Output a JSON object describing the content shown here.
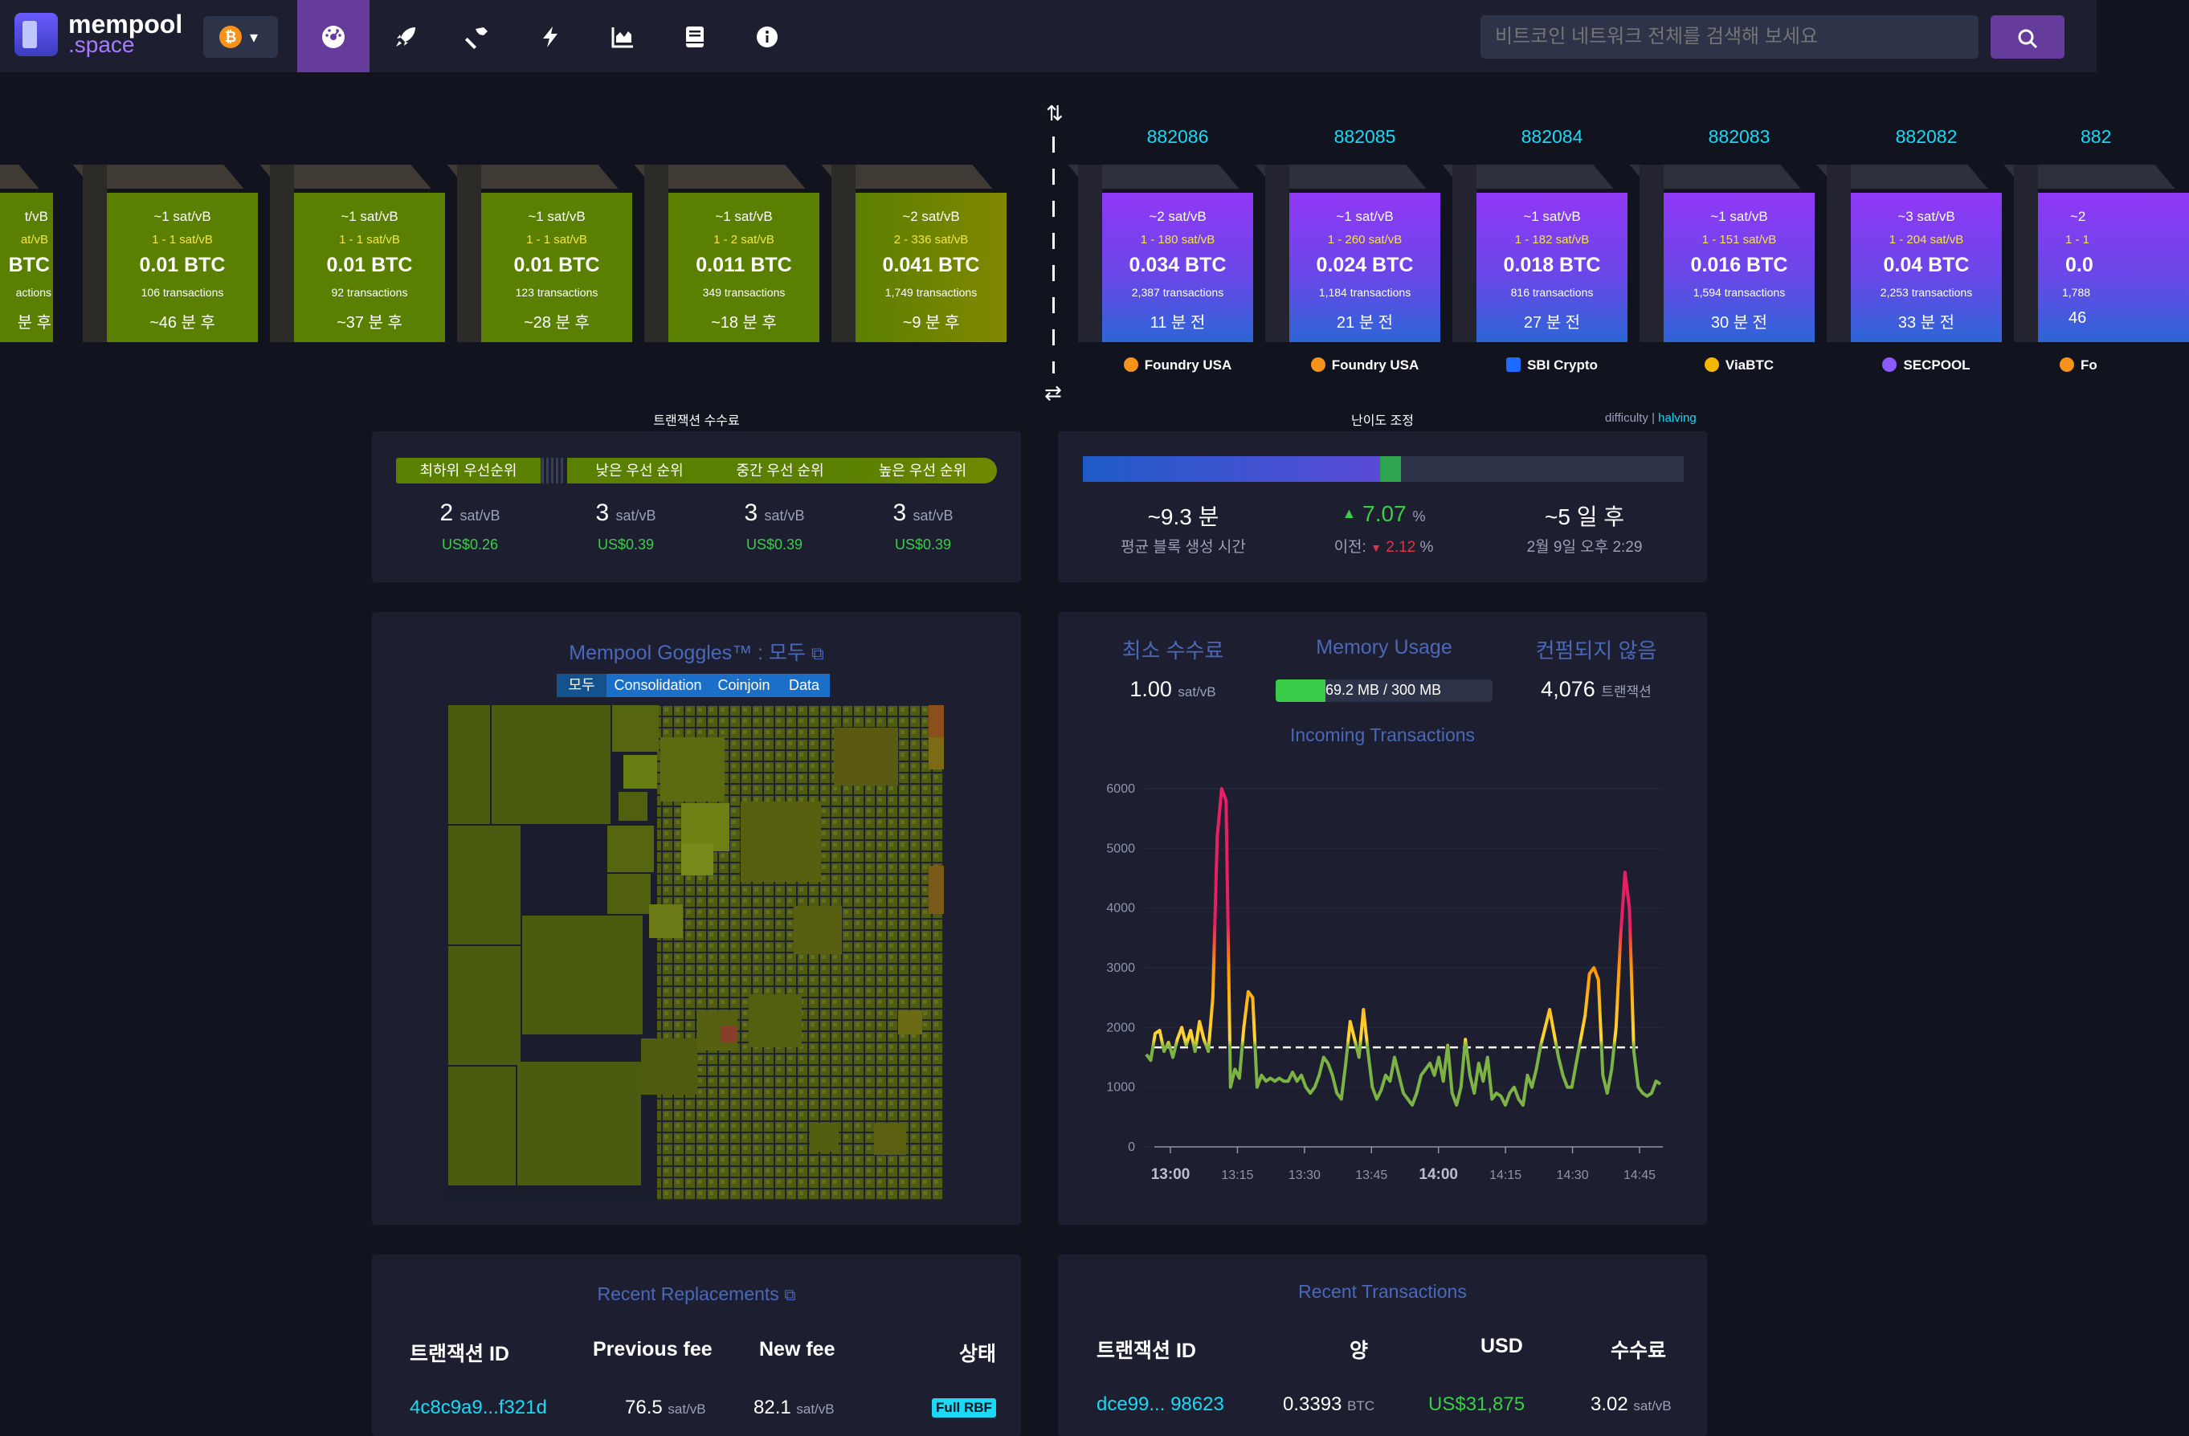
{
  "header": {
    "logo_line1": "mempool",
    "logo_line2": ".space",
    "network_symbol": "₿",
    "nav_icons": [
      "dashboard-icon",
      "rocket-icon",
      "hammer-icon",
      "lightning-icon",
      "chart-icon",
      "docs-icon",
      "info-icon"
    ],
    "search_placeholder": "비트코인 네트워크 전체를 검색해 보세요",
    "accent_color": "#653b9c"
  },
  "projected_blocks": [
    {
      "median_fee": "~1 sat/vB",
      "fee_range": "1 - 1 sat/vB",
      "total": "0.01 BTC",
      "tx_count": "106 transactions",
      "eta": "~46 분 후"
    },
    {
      "median_fee": "~1 sat/vB",
      "fee_range": "1 - 1 sat/vB",
      "total": "0.01 BTC",
      "tx_count": "92 transactions",
      "eta": "~37 분 후"
    },
    {
      "median_fee": "~1 sat/vB",
      "fee_range": "1 - 1 sat/vB",
      "total": "0.01 BTC",
      "tx_count": "123 transactions",
      "eta": "~28 분 후"
    },
    {
      "median_fee": "~1 sat/vB",
      "fee_range": "1 - 2 sat/vB",
      "total": "0.011 BTC",
      "tx_count": "349 transactions",
      "eta": "~18 분 후"
    },
    {
      "median_fee": "~2 sat/vB",
      "fee_range": "2 - 336 sat/vB",
      "total": "0.041 BTC",
      "tx_count": "1,749 transactions",
      "eta": "~9 분 후"
    }
  ],
  "partial_left_block": {
    "line1": "t/vB",
    "line2": "at/vB",
    "total": "BTC",
    "tx": "actions",
    "eta": "분 후"
  },
  "mined_blocks": [
    {
      "height": "882086",
      "median_fee": "~2 sat/vB",
      "fee_range": "1 - 180 sat/vB",
      "total": "0.034 BTC",
      "tx_count": "2,387 transactions",
      "age": "11 분 전",
      "pool": "Foundry USA"
    },
    {
      "height": "882085",
      "median_fee": "~1 sat/vB",
      "fee_range": "1 - 260 sat/vB",
      "total": "0.024 BTC",
      "tx_count": "1,184 transactions",
      "age": "21 분 전",
      "pool": "Foundry USA"
    },
    {
      "height": "882084",
      "median_fee": "~1 sat/vB",
      "fee_range": "1 - 182 sat/vB",
      "total": "0.018 BTC",
      "tx_count": "816 transactions",
      "age": "27 분 전",
      "pool": "SBI Crypto"
    },
    {
      "height": "882083",
      "median_fee": "~1 sat/vB",
      "fee_range": "1 - 151 sat/vB",
      "total": "0.016 BTC",
      "tx_count": "1,594 transactions",
      "age": "30 분 전",
      "pool": "ViaBTC"
    },
    {
      "height": "882082",
      "median_fee": "~3 sat/vB",
      "fee_range": "1 - 204 sat/vB",
      "total": "0.04 BTC",
      "tx_count": "2,253 transactions",
      "age": "33 분 전",
      "pool": "SECPOOL"
    }
  ],
  "partial_right_block": {
    "height": "882",
    "line1": "~2",
    "line2": "1 - 1",
    "total": "0.0",
    "tx": "1,788",
    "age": "46",
    "pool": "Fo"
  },
  "fees": {
    "caption": "트랜잭션 수수료",
    "labels": [
      "최하위 우선순위",
      "낮은 우선 순위",
      "중간 우선 순위",
      "높은 우선 순위"
    ],
    "values": [
      "2",
      "3",
      "3",
      "3"
    ],
    "unit": "sat/vB",
    "usd": [
      "US$0.26",
      "US$0.39",
      "US$0.39",
      "US$0.39"
    ]
  },
  "difficulty": {
    "caption": "난이도 조정",
    "link_difficulty": "difficulty",
    "separator": "|",
    "link_halving": "halving",
    "progress_fraction": 0.53,
    "avg_block_time": "~9.3 분",
    "avg_block_time_label": "평균 블록 생성 시간",
    "change": "7.07",
    "percent": "%",
    "prev_label": "이전:",
    "prev_change": "2.12",
    "eta": "~5 일 후",
    "eta_date": "2월 9일 오후 2:29"
  },
  "goggles": {
    "title": "Mempool Goggles™ : 모두",
    "tabs": [
      "모두",
      "Consolidation",
      "Coinjoin",
      "Data"
    ]
  },
  "stats": {
    "min_fee_title": "최소 수수료",
    "min_fee_value": "1.00",
    "min_fee_unit": "sat/vB",
    "memory_title": "Memory Usage",
    "memory_text": "69.2 MB / 300 MB",
    "memory_fraction": 0.23,
    "unconfirmed_title": "컨펌되지 않음",
    "unconfirmed_value": "4,076",
    "unconfirmed_unit": "트랜잭션",
    "incoming_title": "Incoming Transactions"
  },
  "chart_data": {
    "type": "line",
    "title": "Incoming Transactions",
    "xlabel": "",
    "ylabel": "",
    "ylim": [
      0,
      6000
    ],
    "yticks": [
      "0",
      "1000",
      "2000",
      "3000",
      "4000",
      "5000",
      "6000"
    ],
    "xticks": [
      "13:00",
      "13:15",
      "13:30",
      "13:45",
      "14:00",
      "14:15",
      "14:30",
      "14:45"
    ],
    "threshold": 1667,
    "values": [
      1550,
      1450,
      1900,
      1950,
      1600,
      1750,
      1500,
      1800,
      2000,
      1700,
      1950,
      1600,
      2100,
      1800,
      1600,
      2500,
      5200,
      6000,
      5800,
      1000,
      1300,
      1150,
      2000,
      2600,
      2500,
      1000,
      1200,
      1100,
      1150,
      1100,
      1150,
      1100,
      1100,
      1250,
      1100,
      1200,
      1000,
      900,
      1000,
      1200,
      1500,
      1400,
      1200,
      900,
      800,
      1400,
      2100,
      1800,
      1500,
      2300,
      1600,
      1000,
      800,
      950,
      1200,
      1100,
      1500,
      1200,
      900,
      800,
      700,
      900,
      1200,
      1300,
      1400,
      1200,
      1500,
      1100,
      1700,
      900,
      700,
      1000,
      1800,
      1200,
      900,
      1400,
      1100,
      1500,
      800,
      900,
      850,
      700,
      900,
      1000,
      800,
      700,
      1200,
      1000,
      1300,
      1700,
      2000,
      2300,
      1900,
      1500,
      1200,
      1000,
      1000,
      1400,
      1800,
      2200,
      2900,
      3000,
      2800,
      1200,
      900,
      1300,
      2000,
      3500,
      4600,
      4000,
      1600,
      1000,
      900,
      850,
      900,
      1100,
      1050
    ]
  },
  "replacements": {
    "title": "Recent Replacements",
    "headers": [
      "트랜잭션 ID",
      "Previous fee",
      "New fee",
      "상태"
    ],
    "row": {
      "txid": "4c8c9a9...f321d",
      "prev_fee": "76.5",
      "new_fee": "82.1",
      "unit": "sat/vB",
      "status": "Full RBF"
    }
  },
  "transactions": {
    "title": "Recent Transactions",
    "headers": [
      "트랜잭션 ID",
      "양",
      "USD",
      "수수료"
    ],
    "row": {
      "txid": "dce99... 98623",
      "amount": "0.3393",
      "amount_unit": "BTC",
      "usd": "US$31,875",
      "fee": "3.02",
      "fee_unit": "sat/vB"
    }
  },
  "colors": {
    "background": "#11131f",
    "panel": "#1d1f31",
    "projected_block": "#5b7f00",
    "mined_block_top": "#9038f5",
    "mined_block_bottom": "#2c66d6",
    "link": "#1bd8f4",
    "green": "#3bcc49",
    "red": "#dc3545",
    "title_blue": "#4a68b9"
  }
}
